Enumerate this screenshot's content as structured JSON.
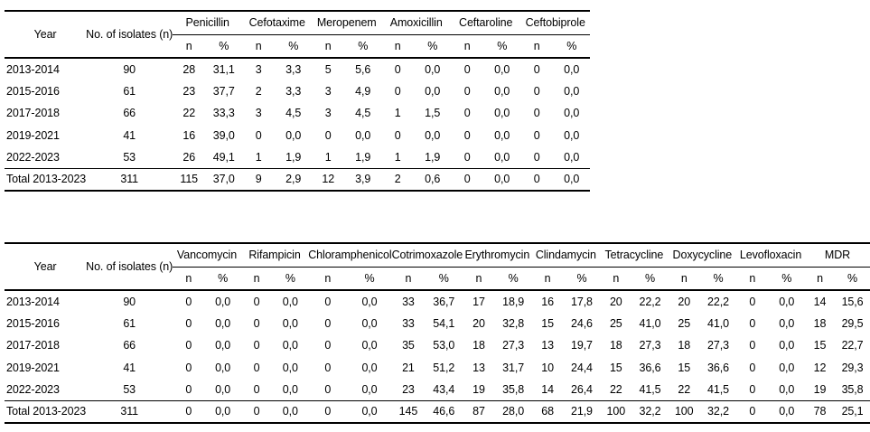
{
  "page": {
    "background": "#ffffff",
    "text_color": "#000000"
  },
  "tables": [
    {
      "id": "beta-lactams",
      "headers": {
        "year": "Year",
        "isolates": "No. of isolates (n)",
        "n": "n",
        "pct": "%"
      },
      "drugs": [
        "Penicillin",
        "Cefotaxime",
        "Meropenem",
        "Amoxicillin",
        "Ceftaroline",
        "Ceftobiprole"
      ],
      "rows": [
        {
          "year": "2013-2014",
          "isolates": "90",
          "values": [
            "28",
            "31,1",
            "3",
            "3,3",
            "5",
            "5,6",
            "0",
            "0,0",
            "0",
            "0,0",
            "0",
            "0,0"
          ]
        },
        {
          "year": "2015-2016",
          "isolates": "61",
          "values": [
            "23",
            "37,7",
            "2",
            "3,3",
            "3",
            "4,9",
            "0",
            "0,0",
            "0",
            "0,0",
            "0",
            "0,0"
          ]
        },
        {
          "year": "2017-2018",
          "isolates": "66",
          "values": [
            "22",
            "33,3",
            "3",
            "4,5",
            "3",
            "4,5",
            "1",
            "1,5",
            "0",
            "0,0",
            "0",
            "0,0"
          ]
        },
        {
          "year": "2019-2021",
          "isolates": "41",
          "values": [
            "16",
            "39,0",
            "0",
            "0,0",
            "0",
            "0,0",
            "0",
            "0,0",
            "0",
            "0,0",
            "0",
            "0,0"
          ]
        },
        {
          "year": "2022-2023",
          "isolates": "53",
          "values": [
            "26",
            "49,1",
            "1",
            "1,9",
            "1",
            "1,9",
            "1",
            "1,9",
            "0",
            "0,0",
            "0",
            "0,0"
          ]
        }
      ],
      "total": {
        "year": "Total 2013-2023",
        "isolates": "311",
        "values": [
          "115",
          "37,0",
          "9",
          "2,9",
          "12",
          "3,9",
          "2",
          "0,6",
          "0",
          "0,0",
          "0",
          "0,0"
        ]
      }
    },
    {
      "id": "non-beta-lactams",
      "headers": {
        "year": "Year",
        "isolates": "No. of isolates (n)",
        "n": "n",
        "pct": "%"
      },
      "drugs": [
        "Vancomycin",
        "Rifampicin",
        "Chloramphenicol",
        "Cotrimoxazole",
        "Erythromycin",
        "Clindamycin",
        "Tetracycline",
        "Doxycycline",
        "Levofloxacin",
        "MDR"
      ],
      "rows": [
        {
          "year": "2013-2014",
          "isolates": "90",
          "values": [
            "0",
            "0,0",
            "0",
            "0,0",
            "0",
            "0,0",
            "33",
            "36,7",
            "17",
            "18,9",
            "16",
            "17,8",
            "20",
            "22,2",
            "20",
            "22,2",
            "0",
            "0,0",
            "14",
            "15,6"
          ]
        },
        {
          "year": "2015-2016",
          "isolates": "61",
          "values": [
            "0",
            "0,0",
            "0",
            "0,0",
            "0",
            "0,0",
            "33",
            "54,1",
            "20",
            "32,8",
            "15",
            "24,6",
            "25",
            "41,0",
            "25",
            "41,0",
            "0",
            "0,0",
            "18",
            "29,5"
          ]
        },
        {
          "year": "2017-2018",
          "isolates": "66",
          "values": [
            "0",
            "0,0",
            "0",
            "0,0",
            "0",
            "0,0",
            "35",
            "53,0",
            "18",
            "27,3",
            "13",
            "19,7",
            "18",
            "27,3",
            "18",
            "27,3",
            "0",
            "0,0",
            "15",
            "22,7"
          ]
        },
        {
          "year": "2019-2021",
          "isolates": "41",
          "values": [
            "0",
            "0,0",
            "0",
            "0,0",
            "0",
            "0,0",
            "21",
            "51,2",
            "13",
            "31,7",
            "10",
            "24,4",
            "15",
            "36,6",
            "15",
            "36,6",
            "0",
            "0,0",
            "12",
            "29,3"
          ]
        },
        {
          "year": "2022-2023",
          "isolates": "53",
          "values": [
            "0",
            "0,0",
            "0",
            "0,0",
            "0",
            "0,0",
            "23",
            "43,4",
            "19",
            "35,8",
            "14",
            "26,4",
            "22",
            "41,5",
            "22",
            "41,5",
            "0",
            "0,0",
            "19",
            "35,8"
          ]
        }
      ],
      "total": {
        "year": "Total 2013-2023",
        "isolates": "311",
        "values": [
          "0",
          "0,0",
          "0",
          "0,0",
          "0",
          "0,0",
          "145",
          "46,6",
          "87",
          "28,0",
          "68",
          "21,9",
          "100",
          "32,2",
          "100",
          "32,2",
          "0",
          "0,0",
          "78",
          "25,1"
        ]
      }
    }
  ]
}
